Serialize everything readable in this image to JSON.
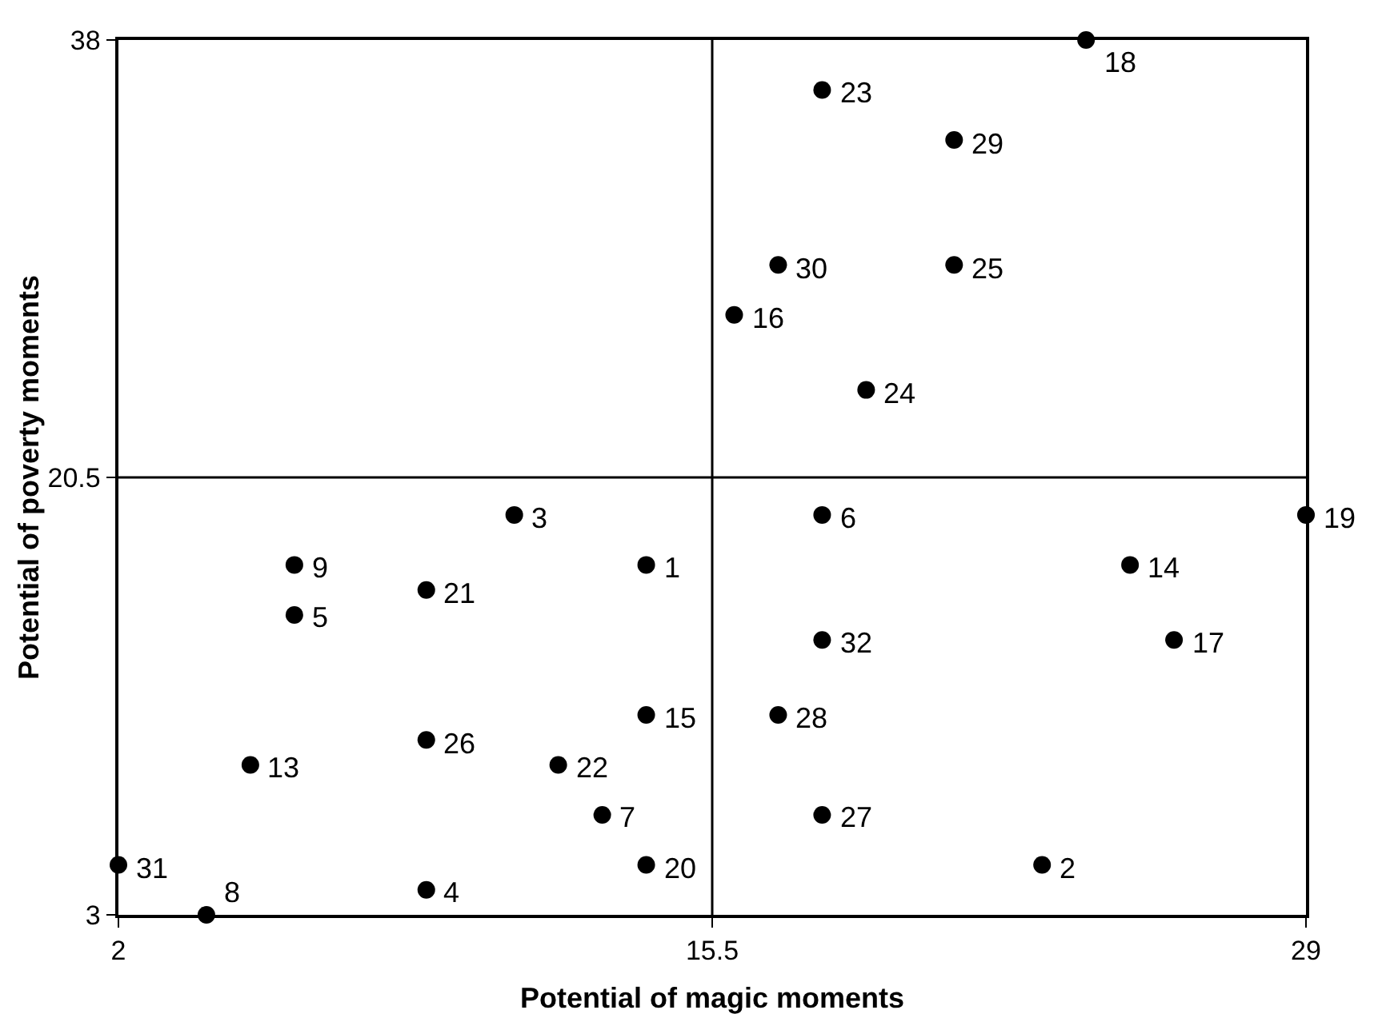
{
  "chart_data": {
    "type": "scatter",
    "xlabel": "Potential of magic moments",
    "ylabel": "Potential of poverty moments",
    "x": [
      24,
      18,
      21,
      17,
      21,
      16,
      19,
      11,
      18,
      29,
      6,
      14,
      25,
      9,
      6,
      18,
      26,
      14,
      17,
      9,
      5,
      12,
      13,
      18,
      2,
      14,
      23,
      9,
      4
    ],
    "series": [
      {
        "color": "#000000",
        "values": [
          38,
          36,
          34,
          29,
          29,
          27,
          24,
          19,
          19,
          19,
          17,
          17,
          17,
          16,
          15,
          14,
          14,
          11,
          11,
          10,
          9,
          9,
          7,
          7,
          5,
          5,
          5,
          4,
          3
        ]
      }
    ],
    "annotations": [
      {
        "text": "18",
        "x": 24,
        "y": 38
      },
      {
        "text": "23",
        "x": 18,
        "y": 36
      },
      {
        "text": "29",
        "x": 21,
        "y": 34
      },
      {
        "text": "30",
        "x": 17,
        "y": 29
      },
      {
        "text": "25",
        "x": 21,
        "y": 29
      },
      {
        "text": "16",
        "x": 16,
        "y": 27
      },
      {
        "text": "24",
        "x": 19,
        "y": 24
      },
      {
        "text": "3",
        "x": 11,
        "y": 19
      },
      {
        "text": "6",
        "x": 18,
        "y": 19
      },
      {
        "text": "19",
        "x": 29,
        "y": 19
      },
      {
        "text": "9",
        "x": 6,
        "y": 17
      },
      {
        "text": "1",
        "x": 14,
        "y": 17
      },
      {
        "text": "14",
        "x": 25,
        "y": 17
      },
      {
        "text": "21",
        "x": 9,
        "y": 16
      },
      {
        "text": "5",
        "x": 6,
        "y": 15
      },
      {
        "text": "32",
        "x": 18,
        "y": 14
      },
      {
        "text": "17",
        "x": 26,
        "y": 14
      },
      {
        "text": "15",
        "x": 14,
        "y": 11
      },
      {
        "text": "28",
        "x": 17,
        "y": 11
      },
      {
        "text": "26",
        "x": 9,
        "y": 10
      },
      {
        "text": "13",
        "x": 5,
        "y": 9
      },
      {
        "text": "22",
        "x": 12,
        "y": 9
      },
      {
        "text": "7",
        "x": 13,
        "y": 7
      },
      {
        "text": "27",
        "x": 18,
        "y": 7
      },
      {
        "text": "31",
        "x": 2,
        "y": 5
      },
      {
        "text": "20",
        "x": 14,
        "y": 5
      },
      {
        "text": "2",
        "x": 23,
        "y": 5
      },
      {
        "text": "4",
        "x": 9,
        "y": 4
      },
      {
        "text": "8",
        "x": 4,
        "y": 3
      }
    ],
    "xlim": [
      2,
      29
    ],
    "xticks": [
      2,
      15.5,
      29
    ],
    "ylim": [
      3,
      38
    ],
    "yticks": [
      3,
      20.5,
      38
    ],
    "ref_lines": [
      {
        "axis": "x",
        "value": 15.5
      },
      {
        "axis": "y",
        "value": 20.5
      }
    ],
    "marker": "circle"
  }
}
